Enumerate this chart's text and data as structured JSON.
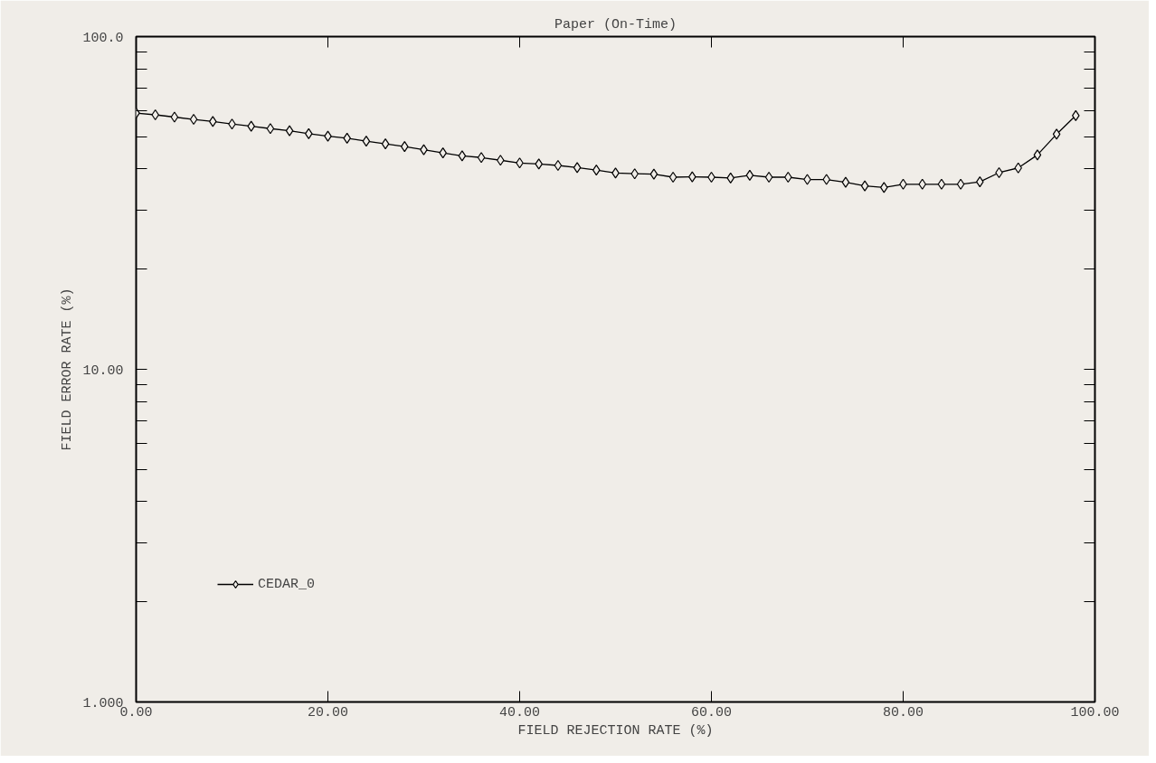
{
  "chart_data": {
    "type": "line",
    "title": "Paper (On-Time)",
    "xlabel": "FIELD REJECTION RATE (%)",
    "ylabel": "FIELD ERROR RATE (%)",
    "x": [
      0,
      2,
      4,
      6,
      8,
      10,
      12,
      14,
      16,
      18,
      20,
      22,
      24,
      26,
      28,
      30,
      32,
      34,
      36,
      38,
      40,
      42,
      44,
      46,
      48,
      50,
      52,
      54,
      56,
      58,
      60,
      62,
      64,
      66,
      68,
      70,
      72,
      74,
      76,
      78,
      80,
      82,
      84,
      86,
      88,
      90,
      92,
      94,
      96,
      98
    ],
    "series": [
      {
        "name": "CEDAR_0",
        "color": "#000000",
        "values": [
          58.9,
          58.2,
          57.3,
          56.4,
          55.6,
          54.6,
          53.8,
          52.9,
          52.1,
          51.1,
          50.2,
          49.5,
          48.5,
          47.6,
          46.7,
          45.7,
          44.7,
          43.8,
          43.3,
          42.5,
          41.7,
          41.4,
          41.0,
          40.4,
          39.7,
          38.9,
          38.7,
          38.6,
          37.8,
          37.9,
          37.8,
          37.6,
          38.3,
          37.8,
          37.8,
          37.2,
          37.2,
          36.5,
          35.6,
          35.2,
          36.0,
          36.0,
          36.0,
          36.0,
          36.6,
          39.0,
          40.3,
          44.1,
          50.9,
          57.9
        ]
      }
    ],
    "xlim": [
      0,
      100
    ],
    "ylim": [
      1,
      100
    ],
    "log": true,
    "xticks": [
      {
        "value": 0,
        "label": "0.00"
      },
      {
        "value": 20,
        "label": "20.00"
      },
      {
        "value": 40,
        "label": "40.00"
      },
      {
        "value": 60,
        "label": "60.00"
      },
      {
        "value": 80,
        "label": "80.00"
      },
      {
        "value": 100,
        "label": "100.00"
      }
    ],
    "yticks": [
      {
        "value": 1,
        "label": "1.000"
      },
      {
        "value": 2,
        "label": null
      },
      {
        "value": 3,
        "label": null
      },
      {
        "value": 4,
        "label": null
      },
      {
        "value": 5,
        "label": null
      },
      {
        "value": 6,
        "label": null
      },
      {
        "value": 7,
        "label": null
      },
      {
        "value": 8,
        "label": null
      },
      {
        "value": 9,
        "label": null
      },
      {
        "value": 10,
        "label": "10.00"
      },
      {
        "value": 20,
        "label": null
      },
      {
        "value": 30,
        "label": null
      },
      {
        "value": 40,
        "label": null
      },
      {
        "value": 50,
        "label": null
      },
      {
        "value": 60,
        "label": null
      },
      {
        "value": 70,
        "label": null
      },
      {
        "value": 80,
        "label": null
      },
      {
        "value": 90,
        "label": null
      },
      {
        "value": 100,
        "label": "100.0"
      }
    ],
    "grid": false,
    "legend": "bottom left",
    "marker": "diamond",
    "line_style": "solid"
  }
}
